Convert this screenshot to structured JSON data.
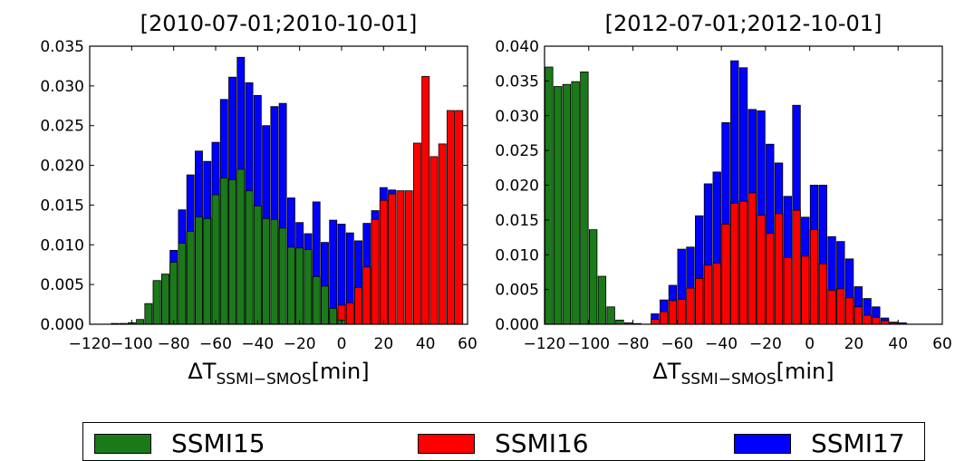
{
  "chart_data": [
    {
      "type": "bar",
      "title": "[2010-07-01;2010-10-01]",
      "xlabel": "ΔT",
      "xlabel_sub": "SSMI−SMOS",
      "xlabel_unit": "[min]",
      "xlim": [
        -120,
        60
      ],
      "ylim": [
        0,
        0.035
      ],
      "xticks": [
        -120,
        -100,
        -80,
        -60,
        -40,
        -20,
        0,
        20,
        40,
        60
      ],
      "xtick_labels": [
        "−120",
        "−100",
        "−80",
        "−60",
        "−40",
        "−20",
        "0",
        "20",
        "40",
        "60"
      ],
      "yticks": [
        0,
        0.005,
        0.01,
        0.015,
        0.02,
        0.025,
        0.03,
        0.035
      ],
      "ytick_labels": [
        "0.000",
        "0.005",
        "0.010",
        "0.015",
        "0.020",
        "0.025",
        "0.030",
        "0.035"
      ],
      "bin_width": 4,
      "series": [
        {
          "name": "SSMI15",
          "x": [
            -108,
            -104,
            -100,
            -96,
            -92,
            -88,
            -84,
            -80,
            -76,
            -72,
            -68,
            -64,
            -60,
            -56,
            -52,
            -48,
            -44,
            -40,
            -36,
            -32,
            -28,
            -24,
            -20,
            -16,
            -12,
            -8,
            -4,
            0
          ],
          "values": [
            0.0001,
            0.0001,
            0.0002,
            0.0006,
            0.0026,
            0.0055,
            0.0063,
            0.0078,
            0.0102,
            0.0117,
            0.0135,
            0.0133,
            0.0163,
            0.0184,
            0.0182,
            0.0195,
            0.0168,
            0.0149,
            0.0133,
            0.0132,
            0.0121,
            0.0097,
            0.0096,
            0.0094,
            0.006,
            0.0048,
            0.002,
            0.0005
          ]
        },
        {
          "name": "SSMI17",
          "x": [
            -88,
            -84,
            -80,
            -76,
            -72,
            -68,
            -64,
            -60,
            -56,
            -52,
            -48,
            -44,
            -40,
            -36,
            -32,
            -28,
            -24,
            -20,
            -16,
            -12,
            -8,
            -4,
            0,
            4,
            8,
            12,
            16,
            20,
            24
          ],
          "values": [
            0.0054,
            0.0063,
            0.0093,
            0.0144,
            0.0188,
            0.0218,
            0.0205,
            0.0229,
            0.0283,
            0.0311,
            0.0336,
            0.0304,
            0.0288,
            0.025,
            0.0274,
            0.0278,
            0.0159,
            0.0128,
            0.0114,
            0.0154,
            0.0103,
            0.0131,
            0.0126,
            0.0115,
            0.0105,
            0.0127,
            0.0143,
            0.0172,
            0.0169
          ]
        },
        {
          "name": "SSMI16",
          "x": [
            -4,
            0,
            4,
            8,
            12,
            16,
            20,
            24,
            28,
            32,
            36,
            40,
            44,
            48,
            52,
            56
          ],
          "values": [
            0.0017,
            0.0024,
            0.0027,
            0.0046,
            0.0072,
            0.0132,
            0.0156,
            0.0164,
            0.0168,
            0.0168,
            0.0228,
            0.0312,
            0.0211,
            0.0227,
            0.0269,
            0.0269
          ]
        }
      ]
    },
    {
      "type": "bar",
      "title": "[2012-07-01;2012-10-01]",
      "xlabel": "ΔT",
      "xlabel_sub": "SSMI−SMOS",
      "xlabel_unit": "[min]",
      "xlim": [
        -120,
        60
      ],
      "ylim": [
        0,
        0.04
      ],
      "xticks": [
        -120,
        -100,
        -80,
        -60,
        -40,
        -20,
        0,
        20,
        40,
        60
      ],
      "xtick_labels": [
        "−120",
        "−100",
        "−80",
        "−60",
        "−40",
        "−20",
        "0",
        "20",
        "40",
        "60"
      ],
      "yticks": [
        0,
        0.005,
        0.01,
        0.015,
        0.02,
        0.025,
        0.03,
        0.035,
        0.04
      ],
      "ytick_labels": [
        "0.000",
        "0.005",
        "0.010",
        "0.015",
        "0.020",
        "0.025",
        "0.030",
        "0.035",
        "0.040"
      ],
      "bin_width": 4,
      "series": [
        {
          "name": "SSMI15",
          "x": [
            -118,
            -114,
            -110,
            -106,
            -102,
            -98,
            -94,
            -90,
            -86,
            -82,
            -78
          ],
          "values": [
            0.037,
            0.0342,
            0.0345,
            0.0349,
            0.0363,
            0.0136,
            0.0069,
            0.0025,
            0.0006,
            0.0002,
            0.0001
          ]
        },
        {
          "name": "SSMI17",
          "x": [
            -70,
            -66,
            -62,
            -58,
            -54,
            -50,
            -46,
            -42,
            -38,
            -34,
            -30,
            -26,
            -22,
            -18,
            -14,
            -10,
            -6,
            -2,
            2,
            6,
            10,
            14,
            18,
            22,
            26,
            30,
            34,
            38,
            42
          ],
          "values": [
            0.0015,
            0.0035,
            0.0056,
            0.0108,
            0.0111,
            0.0156,
            0.0202,
            0.0219,
            0.029,
            0.0379,
            0.0369,
            0.0309,
            0.0307,
            0.0259,
            0.0232,
            0.0184,
            0.0315,
            0.0154,
            0.02,
            0.02,
            0.0126,
            0.0119,
            0.0094,
            0.0054,
            0.0037,
            0.0025,
            0.0009,
            0.0003,
            0.0002
          ]
        },
        {
          "name": "SSMI16",
          "x": [
            -70,
            -66,
            -62,
            -58,
            -54,
            -50,
            -46,
            -42,
            -38,
            -34,
            -30,
            -26,
            -22,
            -18,
            -14,
            -10,
            -6,
            -2,
            2,
            6,
            10,
            14,
            18,
            22,
            26,
            30,
            34,
            38
          ],
          "values": [
            0.0007,
            0.0018,
            0.0034,
            0.0036,
            0.0052,
            0.0066,
            0.0085,
            0.0088,
            0.0144,
            0.0174,
            0.0177,
            0.0189,
            0.0157,
            0.0131,
            0.0159,
            0.0096,
            0.0164,
            0.0098,
            0.0136,
            0.0087,
            0.0049,
            0.0051,
            0.0038,
            0.0025,
            0.0013,
            0.001,
            0.0005,
            0.0002
          ]
        }
      ]
    }
  ],
  "legend": {
    "items": [
      {
        "label": "SSMI15",
        "color": "#1a7a1a"
      },
      {
        "label": "SSMI16",
        "color": "#ff0000"
      },
      {
        "label": "SSMI17",
        "color": "#0000ff"
      }
    ]
  },
  "colors": {
    "SSMI15": "#1a7a1a",
    "SSMI16": "#ff0000",
    "SSMI17": "#0000ff"
  }
}
